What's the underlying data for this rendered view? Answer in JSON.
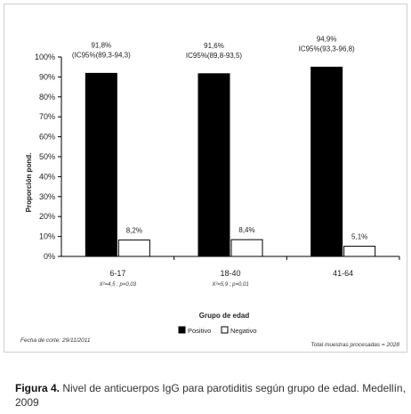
{
  "chart_data": {
    "type": "bar",
    "categories": [
      "6-17",
      "18-40",
      "41-64"
    ],
    "series": [
      {
        "name": "Positivo",
        "values": [
          91.8,
          91.6,
          94.9
        ],
        "color": "#000000"
      },
      {
        "name": "Negativo",
        "values": [
          8.2,
          8.4,
          5.1
        ],
        "color": "#ffffff"
      }
    ],
    "positive_labels": [
      "91,8%",
      "91,6%",
      "94,9%"
    ],
    "positive_ci": [
      "(IC95%(89,3-94,3)",
      "IC95%(89,8-93,5)",
      "IC95%(93,3-96,8)"
    ],
    "negative_labels": [
      "8,2%",
      "8,4%",
      "5,1%"
    ],
    "category_notes": [
      "X²=4,5 ; p=0,03",
      "X²=5,9 ; p=0,01",
      ""
    ],
    "ylabel": "Proporción pond.",
    "xlabel": "Grupo de edad",
    "ylim": [
      0,
      100
    ],
    "yticks": [
      "0%",
      "10%",
      "20%",
      "30%",
      "40%",
      "50%",
      "60%",
      "70%",
      "80%",
      "90%",
      "100%"
    ],
    "legend_position": "bottom",
    "grid": false
  },
  "footer": {
    "cutoff_date": "Fecha de corte: 29/11/2011",
    "total": "Total muestras procesadas = 2028"
  },
  "caption": {
    "label": "Figura 4.",
    "text": " Nivel de anticuerpos IgG para parotiditis según grupo de edad. Medellín, 2009"
  }
}
